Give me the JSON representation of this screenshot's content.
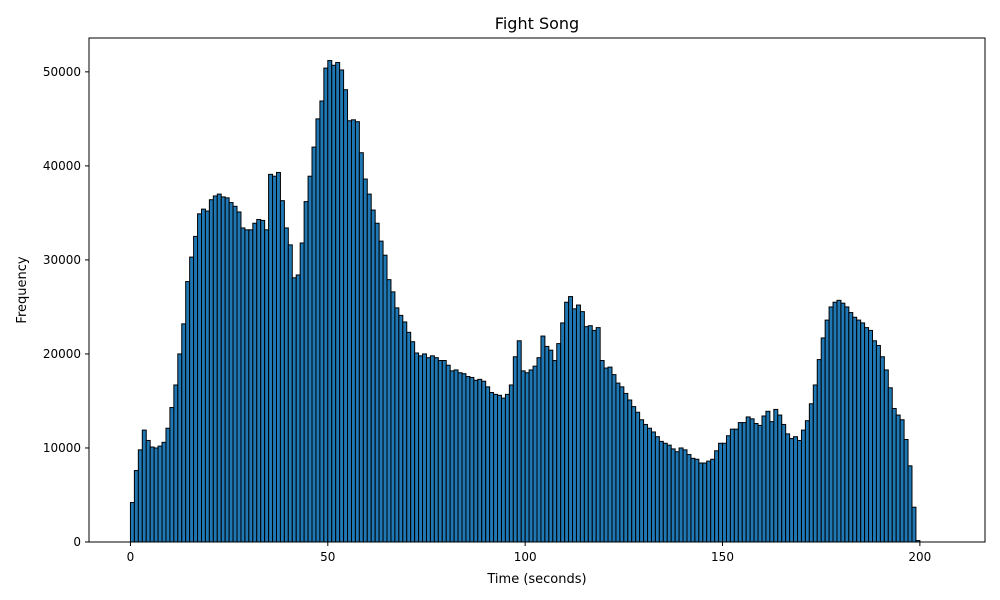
{
  "chart_data": {
    "type": "bar",
    "title": "Fight Song",
    "xlabel": "Time (seconds)",
    "ylabel": "Frequency",
    "xlim": [
      -10.5,
      216.5
    ],
    "ylim": [
      0,
      53600
    ],
    "bin_width": 1,
    "x_ticks": [
      0,
      50,
      100,
      150,
      200
    ],
    "y_ticks": [
      0,
      10000,
      20000,
      30000,
      40000,
      50000
    ],
    "grid": false,
    "legend": "none",
    "bar_color": "#1f77b4",
    "edge_color": "#000000",
    "values": [
      4200,
      7600,
      9800,
      11900,
      10800,
      10100,
      10000,
      10200,
      10600,
      12100,
      14300,
      16700,
      20000,
      23200,
      27700,
      30300,
      32500,
      34900,
      35400,
      35200,
      36400,
      36800,
      37000,
      36700,
      36600,
      36100,
      35700,
      35100,
      33400,
      33200,
      33200,
      33900,
      34300,
      34200,
      33200,
      39100,
      38900,
      39300,
      36300,
      33400,
      31600,
      28100,
      28400,
      31800,
      36200,
      38900,
      42000,
      45000,
      46900,
      50400,
      51200,
      50700,
      51000,
      50200,
      48100,
      44800,
      44900,
      44700,
      41400,
      38600,
      37000,
      35300,
      33900,
      32000,
      30500,
      27900,
      26600,
      24900,
      24100,
      23400,
      22300,
      21300,
      20100,
      19800,
      20000,
      19600,
      19800,
      19600,
      19300,
      19300,
      18800,
      18200,
      18300,
      18000,
      17900,
      17600,
      17500,
      17200,
      17300,
      17100,
      16500,
      15900,
      15700,
      15600,
      15300,
      15700,
      16700,
      19700,
      21400,
      18200,
      18000,
      18300,
      18700,
      19600,
      21900,
      20800,
      20400,
      19300,
      21100,
      23300,
      25500,
      26100,
      24800,
      25200,
      24500,
      22900,
      23000,
      22500,
      22800,
      19300,
      18500,
      18600,
      17800,
      16900,
      16500,
      15800,
      15100,
      14400,
      13800,
      13000,
      12500,
      12100,
      11700,
      11200,
      10700,
      10500,
      10300,
      9900,
      9600,
      10000,
      9800,
      9300,
      8900,
      8800,
      8400,
      8400,
      8600,
      8800,
      9700,
      10500,
      10500,
      11300,
      12000,
      12000,
      12700,
      12700,
      13300,
      13100,
      12600,
      12400,
      13400,
      13900,
      12800,
      14100,
      13500,
      12500,
      11500,
      11000,
      11200,
      10800,
      11900,
      12900,
      14700,
      16700,
      19400,
      21700,
      23600,
      25000,
      25500,
      25700,
      25400,
      25000,
      24400,
      23900,
      23600,
      23300,
      22800,
      22500,
      21400,
      20900,
      19700,
      18300,
      16400,
      14200,
      13500,
      13000,
      10900,
      8100,
      3700,
      150,
      0,
      0,
      0,
      0,
      0
    ]
  }
}
